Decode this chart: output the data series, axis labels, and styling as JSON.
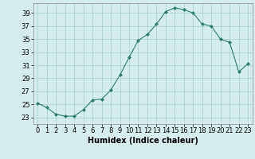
{
  "x": [
    0,
    1,
    2,
    3,
    4,
    5,
    6,
    7,
    8,
    9,
    10,
    11,
    12,
    13,
    14,
    15,
    16,
    17,
    18,
    19,
    20,
    21,
    22,
    23
  ],
  "y": [
    25.2,
    24.5,
    23.5,
    23.2,
    23.2,
    24.2,
    25.7,
    25.8,
    27.2,
    29.5,
    32.2,
    34.8,
    35.7,
    37.3,
    39.2,
    39.8,
    39.5,
    39.0,
    37.3,
    37.0,
    35.0,
    34.5,
    30.0,
    31.2
  ],
  "line_color": "#2d7d6e",
  "marker": "D",
  "marker_size": 2.0,
  "bg_color": "#d4eeee",
  "grid_color": "#aad4d4",
  "xlabel": "Humidex (Indice chaleur)",
  "xlim": [
    -0.5,
    23.5
  ],
  "ylim": [
    22.0,
    40.5
  ],
  "yticks": [
    23,
    25,
    27,
    29,
    31,
    33,
    35,
    37,
    39
  ],
  "xtick_labels": [
    "0",
    "1",
    "2",
    "3",
    "4",
    "5",
    "6",
    "7",
    "8",
    "9",
    "10",
    "11",
    "12",
    "13",
    "14",
    "15",
    "16",
    "17",
    "18",
    "19",
    "20",
    "21",
    "22",
    "23"
  ],
  "xlabel_fontsize": 7,
  "tick_fontsize": 6
}
